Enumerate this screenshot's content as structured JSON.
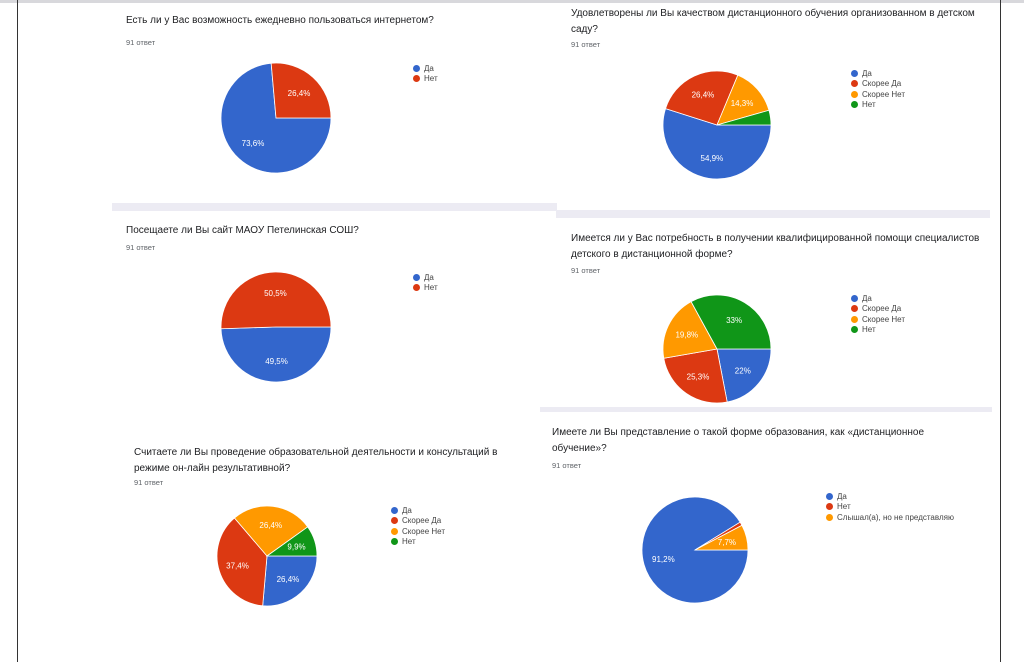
{
  "colors": {
    "blue": "#3366cc",
    "red": "#dc3912",
    "orange": "#ff9900",
    "green": "#109618"
  },
  "chart_data": [
    {
      "type": "pie",
      "title": "Есть ли у Вас возможность ежедневно пользоваться интернетом?",
      "subtitle": "91 ответ",
      "categories": [
        "Да",
        "Нет"
      ],
      "values": [
        73.6,
        26.4
      ],
      "labels": [
        "73,6%",
        "26,4%"
      ],
      "colors": [
        "#3366cc",
        "#dc3912"
      ],
      "legend": "right"
    },
    {
      "type": "pie",
      "title": "Посещаете ли Вы сайт МАОУ Петелинская СОШ?",
      "subtitle": "91 ответ",
      "categories": [
        "Да",
        "Нет"
      ],
      "values": [
        49.5,
        50.5
      ],
      "labels": [
        "49,5%",
        "50,5%"
      ],
      "colors": [
        "#3366cc",
        "#dc3912"
      ],
      "legend": "right"
    },
    {
      "type": "pie",
      "title": "Считаете ли Вы проведение образовательной деятельности и консультаций в режиме он-лайн результативной?",
      "subtitle": "91 ответ",
      "categories": [
        "Да",
        "Скорее Да",
        "Скорее Нет",
        "Нет"
      ],
      "values": [
        26.4,
        37.4,
        26.4,
        9.9
      ],
      "labels": [
        "26,4%",
        "37,4%",
        "26,4%",
        "9,9%"
      ],
      "colors": [
        "#3366cc",
        "#dc3912",
        "#ff9900",
        "#109618"
      ],
      "legend": "right"
    },
    {
      "type": "pie",
      "title": "Удовлетворены ли Вы качеством дистанционного обучения организованном в детском саду?",
      "subtitle": "91 ответ",
      "categories": [
        "Да",
        "Скорее Да",
        "Скорее Нет",
        "Нет"
      ],
      "values": [
        54.9,
        26.4,
        14.3,
        4.4
      ],
      "labels": [
        "54,9%",
        "26,4%",
        "14,3%",
        ""
      ],
      "colors": [
        "#3366cc",
        "#dc3912",
        "#ff9900",
        "#109618"
      ],
      "legend": "right"
    },
    {
      "type": "pie",
      "title": "Имеется ли у Вас потребность в получении квалифицированной помощи специалистов детского в дистанционной форме?",
      "subtitle": "91 ответ",
      "categories": [
        "Да",
        "Скорее Да",
        "Скорее Нет",
        "Нет"
      ],
      "values": [
        22,
        25.3,
        19.8,
        33
      ],
      "labels": [
        "22%",
        "25,3%",
        "19,8%",
        "33%"
      ],
      "colors": [
        "#3366cc",
        "#dc3912",
        "#ff9900",
        "#109618"
      ],
      "legend": "right"
    },
    {
      "type": "pie",
      "title": "Имеете ли Вы представление о такой форме образования, как «дистанционное обучение»?",
      "subtitle": "91 ответ",
      "categories": [
        "Да",
        "Нет",
        "Слышал(а), но не представляю"
      ],
      "values": [
        91.2,
        1.1,
        7.7
      ],
      "labels": [
        "91,2%",
        "",
        "7,7%"
      ],
      "colors": [
        "#3366cc",
        "#dc3912",
        "#ff9900"
      ],
      "legend": "right"
    }
  ]
}
